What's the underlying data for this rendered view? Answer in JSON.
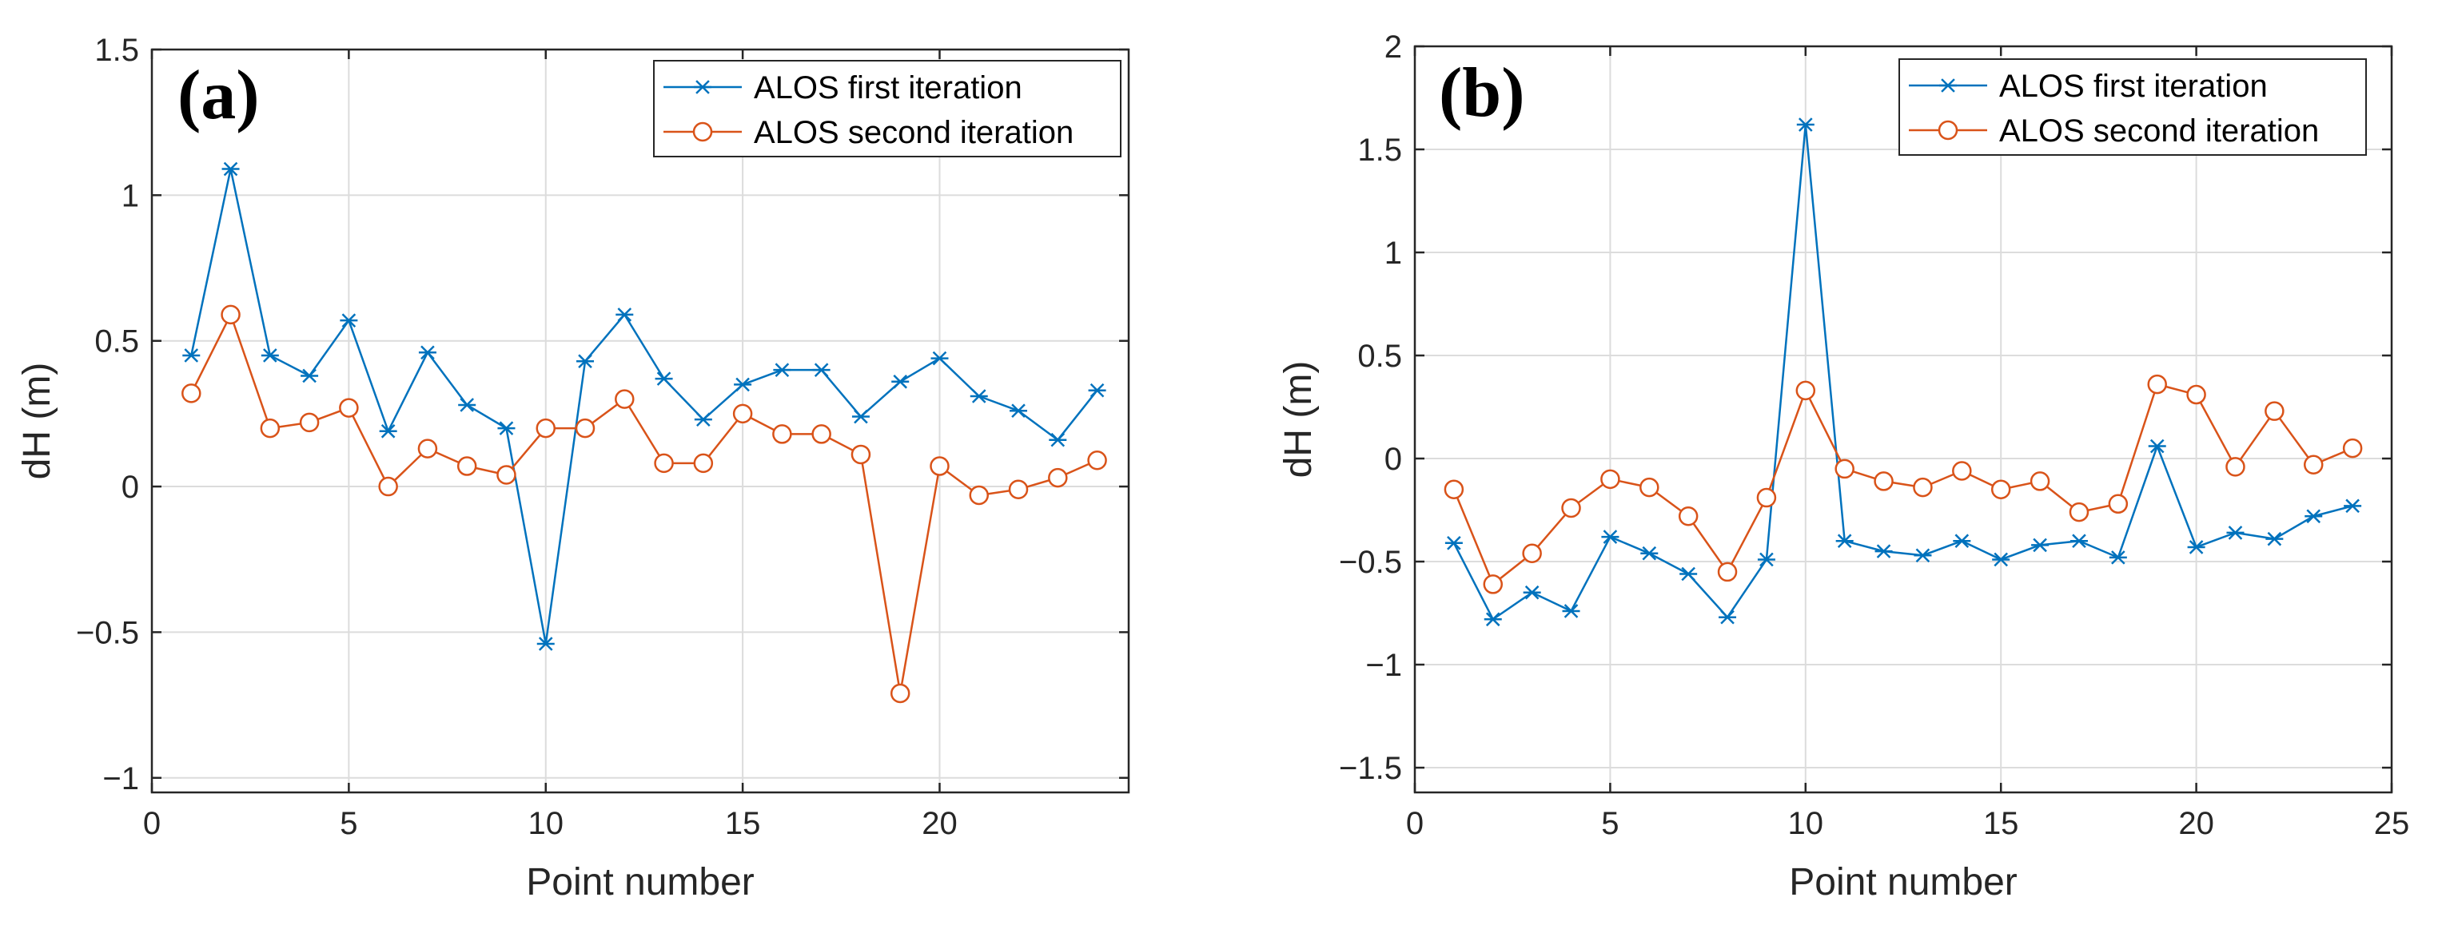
{
  "colors": {
    "series1": "#0072BD",
    "series2": "#D95319"
  },
  "chart_data": [
    {
      "type": "line",
      "panel_label": "(a)",
      "xlabel": "Point number",
      "ylabel": "dH (m)",
      "xlim": [
        0,
        24.8
      ],
      "ylim": [
        -1.05,
        1.5
      ],
      "xticks": [
        0,
        5,
        10,
        15,
        20
      ],
      "xtick_labels": [
        "0",
        "5",
        "10",
        "15",
        "20"
      ],
      "yticks": [
        -1,
        -0.5,
        0,
        0.5,
        1,
        1.5
      ],
      "ytick_labels": [
        "−1",
        "−0.5",
        "0",
        "0.5",
        "1",
        "1.5"
      ],
      "grid": true,
      "legend_position": "top-right",
      "x": [
        1,
        2,
        3,
        4,
        5,
        6,
        7,
        8,
        9,
        10,
        11,
        12,
        13,
        14,
        15,
        16,
        17,
        18,
        19,
        20,
        21,
        22,
        23,
        24
      ],
      "series": [
        {
          "name": "ALOS first iteration",
          "marker": "asterisk",
          "values": [
            0.45,
            1.09,
            0.45,
            0.38,
            0.57,
            0.19,
            0.46,
            0.28,
            0.2,
            -0.54,
            0.43,
            0.59,
            0.37,
            0.23,
            0.35,
            0.4,
            0.4,
            0.24,
            0.36,
            0.44,
            0.31,
            0.26,
            0.16,
            0.33
          ]
        },
        {
          "name": "ALOS second iteration",
          "marker": "circle",
          "values": [
            0.32,
            0.59,
            0.2,
            0.22,
            0.27,
            0.0,
            0.13,
            0.07,
            0.04,
            0.2,
            0.2,
            0.3,
            0.08,
            0.08,
            0.25,
            0.18,
            0.18,
            0.11,
            -0.71,
            0.07,
            -0.03,
            -0.01,
            0.03,
            0.09
          ]
        }
      ]
    },
    {
      "type": "line",
      "panel_label": "(b)",
      "xlabel": "Point number",
      "ylabel": "dH (m)",
      "xlim": [
        0,
        25
      ],
      "ylim": [
        -1.62,
        2
      ],
      "xticks": [
        0,
        5,
        10,
        15,
        20,
        25
      ],
      "xtick_labels": [
        "0",
        "5",
        "10",
        "15",
        "20",
        "25"
      ],
      "yticks": [
        -1.5,
        -1,
        -0.5,
        0,
        0.5,
        1,
        1.5,
        2
      ],
      "ytick_labels": [
        "−1.5",
        "−1",
        "−0.5",
        "0",
        "0.5",
        "1",
        "1.5",
        "2"
      ],
      "grid": true,
      "legend_position": "top-right",
      "x": [
        1,
        2,
        3,
        4,
        5,
        6,
        7,
        8,
        9,
        10,
        11,
        12,
        13,
        14,
        15,
        16,
        17,
        18,
        19,
        20,
        21,
        22,
        23,
        24
      ],
      "series": [
        {
          "name": "ALOS first iteration",
          "marker": "asterisk",
          "values": [
            -0.41,
            -0.78,
            -0.65,
            -0.74,
            -0.38,
            -0.46,
            -0.56,
            -0.77,
            -0.49,
            1.62,
            -0.4,
            -0.45,
            -0.47,
            -0.4,
            -0.49,
            -0.42,
            -0.4,
            -0.48,
            0.06,
            -0.43,
            -0.36,
            -0.39,
            -0.28,
            -0.23
          ]
        },
        {
          "name": "ALOS second iteration",
          "marker": "circle",
          "values": [
            -0.15,
            -0.61,
            -0.46,
            -0.24,
            -0.1,
            -0.14,
            -0.28,
            -0.55,
            -0.19,
            0.33,
            -0.05,
            -0.11,
            -0.14,
            -0.06,
            -0.15,
            -0.11,
            -0.26,
            -0.22,
            0.36,
            0.31,
            -0.04,
            0.23,
            -0.03,
            0.05
          ]
        }
      ]
    }
  ]
}
